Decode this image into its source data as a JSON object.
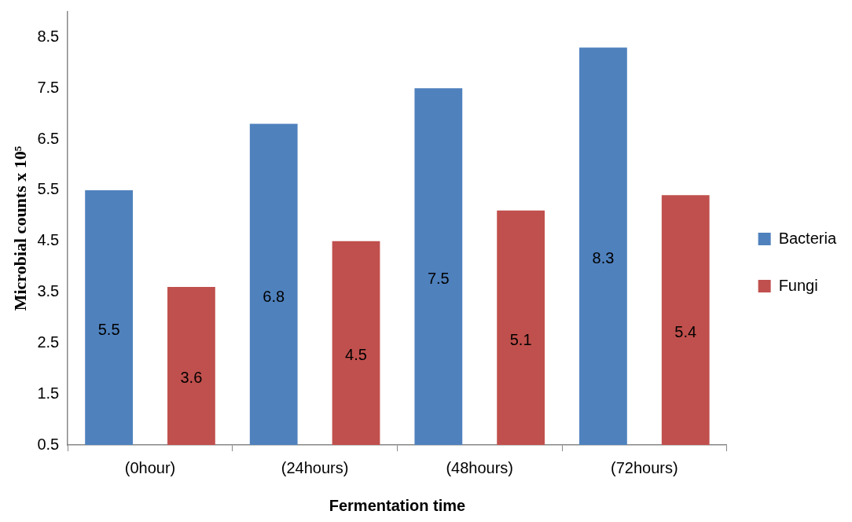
{
  "chart_data": {
    "type": "bar",
    "xlabel": "Fermentation time",
    "ylabel": "Microbial counts x 10⁵",
    "categories": [
      "(0hour)",
      "(24hours)",
      "(48hours)",
      "(72hours)"
    ],
    "series": [
      {
        "name": "Bacteria",
        "color": "#4f81bd",
        "values": [
          5.5,
          6.8,
          7.5,
          8.3
        ]
      },
      {
        "name": "Fungi",
        "color": "#c0504d",
        "values": [
          3.6,
          4.5,
          5.1,
          5.4
        ]
      }
    ],
    "ylim": [
      0.5,
      9
    ],
    "yticks": [
      0.5,
      1.5,
      2.5,
      3.5,
      4.5,
      5.5,
      6.5,
      7.5,
      8.5
    ],
    "grid": false,
    "legend": "right",
    "data_labels": true
  }
}
